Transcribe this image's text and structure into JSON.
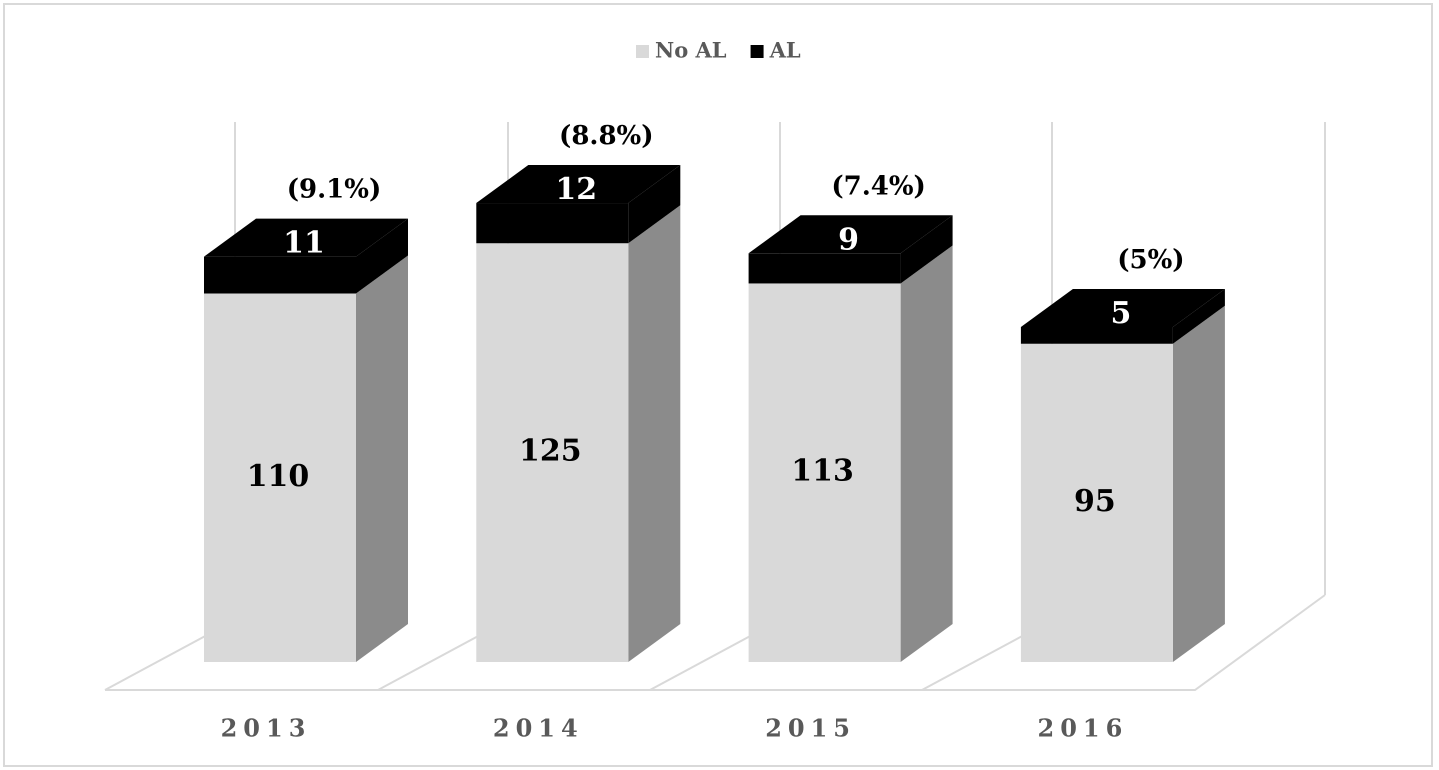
{
  "chart_data": {
    "type": "bar3d_stacked",
    "categories": [
      "2013",
      "2014",
      "2015",
      "2016"
    ],
    "series": [
      {
        "name": "No AL",
        "color": "#d9d9d9",
        "values": [
          110,
          125,
          113,
          95
        ]
      },
      {
        "name": "AL",
        "color": "#000000",
        "values": [
          11,
          12,
          9,
          5
        ]
      }
    ],
    "annotations": [
      "(9.1%)",
      "(8.8%)",
      "(7.4%)",
      "(5%)"
    ],
    "legend": "top"
  }
}
